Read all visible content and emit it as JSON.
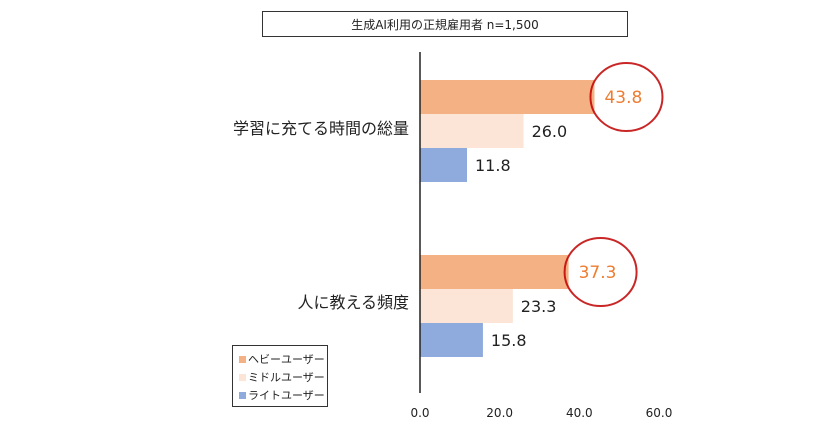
{
  "chart_data": {
    "type": "bar",
    "orientation": "horizontal",
    "title": "生成AI利用の正規雇用者  n=1,500",
    "categories": [
      "学習に充てる時間の総量",
      "人に教える頻度"
    ],
    "series": [
      {
        "name": "ヘビーユーザー",
        "color": "#f4b183",
        "values": [
          43.8,
          37.3
        ]
      },
      {
        "name": "ミドルユーザー",
        "color": "#fce4d6",
        "values": [
          26.0,
          23.3
        ]
      },
      {
        "name": "ライトユーザー",
        "color": "#8faadc",
        "values": [
          11.8,
          15.8
        ]
      }
    ],
    "data_labels": [
      [
        "43.8",
        "26.0",
        "11.8"
      ],
      [
        "37.3",
        "23.3",
        "15.8"
      ]
    ],
    "highlight_label_color": "#ed7d31",
    "highlight_ring_color": "#c00000",
    "highlighted_series": "ヘビーユーザー",
    "xlim": [
      0,
      60
    ],
    "xticks": [
      "0.0",
      "20.0",
      "40.0",
      "60.0"
    ],
    "xticks_values": [
      0,
      20,
      40,
      60
    ],
    "grid": false,
    "legend_position": "bottom-left"
  }
}
